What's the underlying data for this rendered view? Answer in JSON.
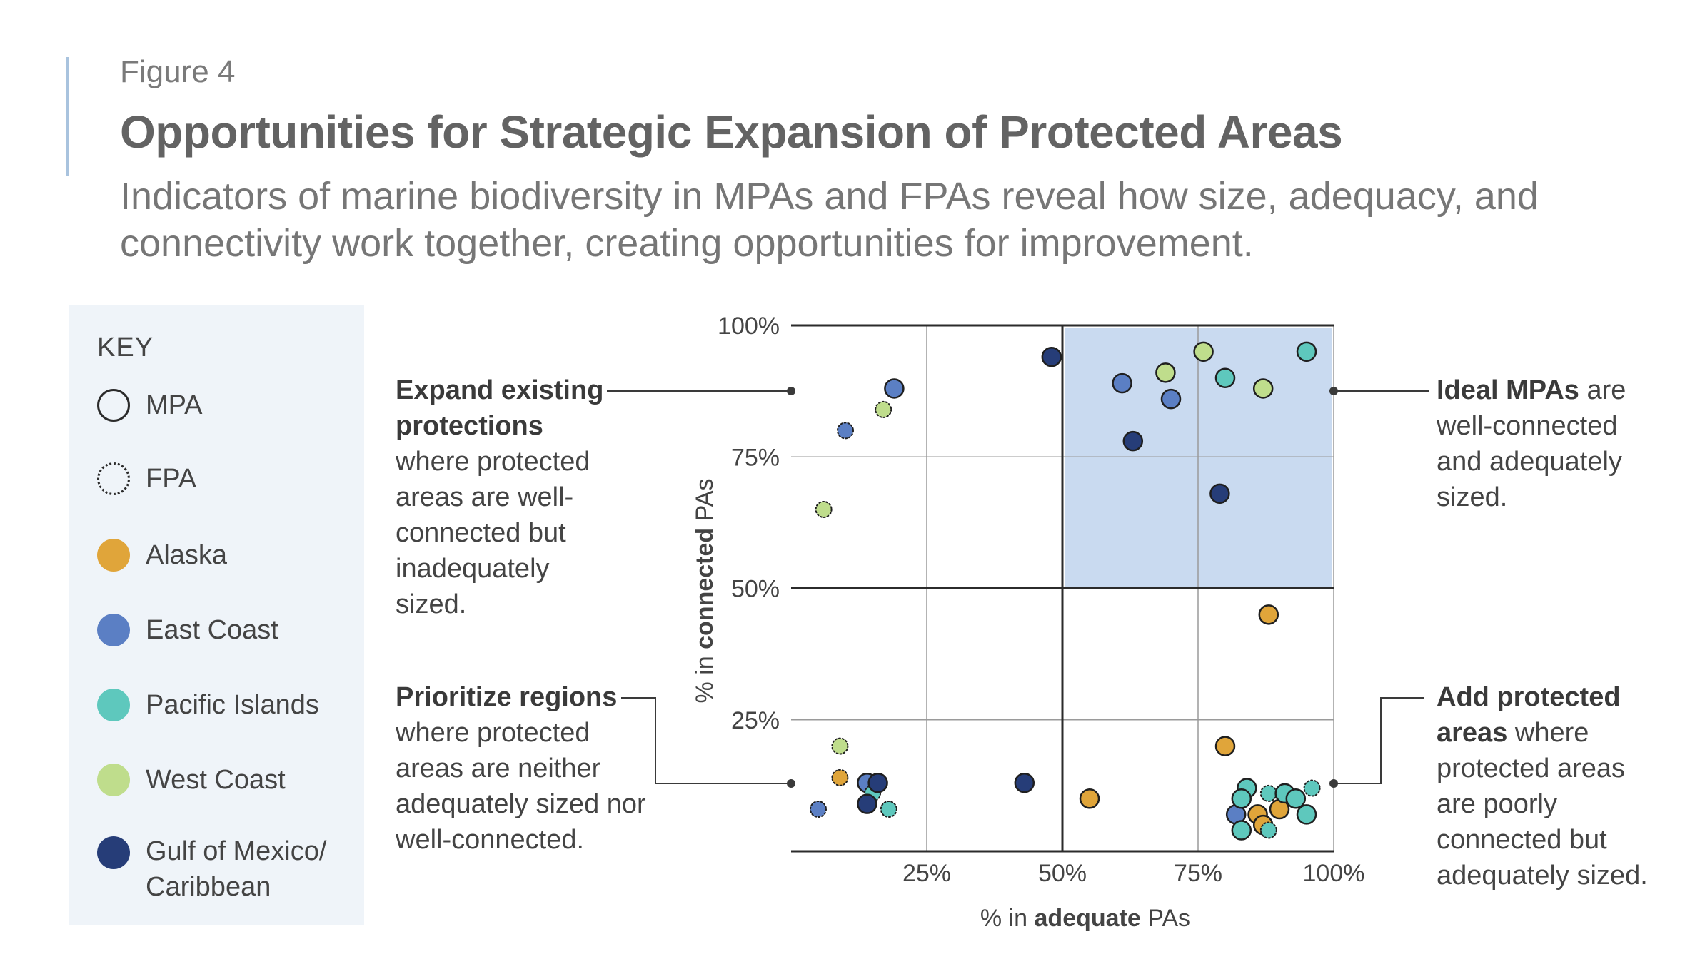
{
  "figure_label": "Figure 4",
  "title": "Opportunities for Strategic Expansion of Protected Areas",
  "subtitle": "Indicators of marine biodiversity in MPAs and FPAs reveal how size, adequacy, and connectivity work together, creating opportunities for improvement.",
  "key": {
    "title": "KEY",
    "types": [
      {
        "label": "MPA",
        "style": "solid"
      },
      {
        "label": "FPA",
        "style": "dotted"
      }
    ],
    "regions": [
      {
        "label": "Alaska",
        "color": "#e0a53a"
      },
      {
        "label": "East Coast",
        "color": "#5b7fc4"
      },
      {
        "label": "Pacific Islands",
        "color": "#5ec8bd"
      },
      {
        "label": "West Coast",
        "color": "#bfdd8c"
      },
      {
        "label": "Gulf of Mexico/ Caribbean",
        "color": "#263d78"
      }
    ]
  },
  "annotations": {
    "top_left": {
      "bold": "Expand existing protections",
      "text": "where protected areas are well-connected but inadequately sized."
    },
    "bottom_left": {
      "bold": "Prioritize regions",
      "text": "where protected areas are neither adequately sized nor well-connected."
    },
    "top_right": {
      "bold": "Ideal MPAs",
      "text": "are well-connected and adequately sized."
    },
    "bottom_right": {
      "bold": "Add protected areas",
      "text": "where protected areas are poorly connected but adequately sized."
    }
  },
  "chart_data": {
    "type": "scatter",
    "xlabel_pre": "% in ",
    "xlabel_bold": "adequate",
    "xlabel_post": " PAs",
    "ylabel_pre": "% in ",
    "ylabel_bold": "connected",
    "ylabel_post": " PAs",
    "xlim": [
      0,
      100
    ],
    "ylim": [
      0,
      100
    ],
    "x_ticks": [
      25,
      50,
      75,
      100
    ],
    "x_tick_labels": [
      "25%",
      "50%",
      "75%",
      "100%"
    ],
    "y_ticks": [
      25,
      50,
      75,
      100
    ],
    "y_tick_labels": [
      "25%",
      "50%",
      "75%",
      "100%"
    ],
    "grid": true,
    "highlight_region": {
      "x": [
        50,
        100
      ],
      "y": [
        50,
        100
      ],
      "color": "#c9daf0"
    },
    "series": [
      {
        "name": "Alaska",
        "color": "#e0a53a",
        "points": [
          {
            "x": 88,
            "y": 45,
            "type": "MPA"
          },
          {
            "x": 80,
            "y": 20,
            "type": "MPA"
          },
          {
            "x": 55,
            "y": 10,
            "type": "MPA"
          },
          {
            "x": 9,
            "y": 14,
            "type": "FPA"
          },
          {
            "x": 86,
            "y": 7,
            "type": "MPA"
          },
          {
            "x": 90,
            "y": 8,
            "type": "MPA"
          },
          {
            "x": 87,
            "y": 5,
            "type": "MPA"
          }
        ]
      },
      {
        "name": "East Coast",
        "color": "#5b7fc4",
        "points": [
          {
            "x": 19,
            "y": 88,
            "type": "MPA"
          },
          {
            "x": 10,
            "y": 80,
            "type": "FPA"
          },
          {
            "x": 61,
            "y": 89,
            "type": "MPA"
          },
          {
            "x": 70,
            "y": 86,
            "type": "MPA"
          },
          {
            "x": 14,
            "y": 13,
            "type": "MPA"
          },
          {
            "x": 5,
            "y": 8,
            "type": "FPA"
          },
          {
            "x": 82,
            "y": 7,
            "type": "MPA"
          }
        ]
      },
      {
        "name": "Pacific Islands",
        "color": "#5ec8bd",
        "points": [
          {
            "x": 95,
            "y": 95,
            "type": "MPA"
          },
          {
            "x": 80,
            "y": 90,
            "type": "MPA"
          },
          {
            "x": 18,
            "y": 8,
            "type": "FPA"
          },
          {
            "x": 84,
            "y": 12,
            "type": "MPA"
          },
          {
            "x": 83,
            "y": 10,
            "type": "MPA"
          },
          {
            "x": 88,
            "y": 11,
            "type": "FPA"
          },
          {
            "x": 91,
            "y": 11,
            "type": "MPA"
          },
          {
            "x": 93,
            "y": 10,
            "type": "MPA"
          },
          {
            "x": 96,
            "y": 12,
            "type": "FPA"
          },
          {
            "x": 95,
            "y": 7,
            "type": "MPA"
          },
          {
            "x": 83,
            "y": 4,
            "type": "MPA"
          },
          {
            "x": 88,
            "y": 4,
            "type": "FPA"
          },
          {
            "x": 15,
            "y": 11,
            "type": "FPA"
          }
        ]
      },
      {
        "name": "West Coast",
        "color": "#bfdd8c",
        "points": [
          {
            "x": 17,
            "y": 84,
            "type": "FPA"
          },
          {
            "x": 6,
            "y": 65,
            "type": "FPA"
          },
          {
            "x": 69,
            "y": 91,
            "type": "MPA"
          },
          {
            "x": 76,
            "y": 95,
            "type": "MPA"
          },
          {
            "x": 87,
            "y": 88,
            "type": "MPA"
          },
          {
            "x": 9,
            "y": 20,
            "type": "FPA"
          }
        ]
      },
      {
        "name": "Gulf of Mexico/Caribbean",
        "color": "#263d78",
        "points": [
          {
            "x": 48,
            "y": 94,
            "type": "MPA"
          },
          {
            "x": 63,
            "y": 78,
            "type": "MPA"
          },
          {
            "x": 79,
            "y": 68,
            "type": "MPA"
          },
          {
            "x": 43,
            "y": 13,
            "type": "MPA"
          },
          {
            "x": 16,
            "y": 13,
            "type": "MPA"
          },
          {
            "x": 14,
            "y": 9,
            "type": "MPA"
          }
        ]
      }
    ]
  }
}
